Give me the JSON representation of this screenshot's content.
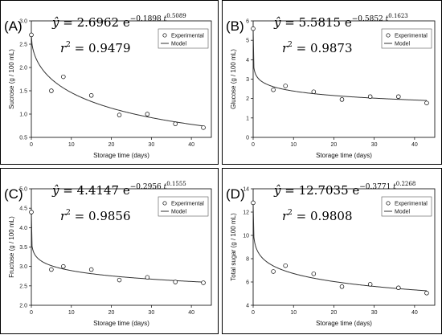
{
  "chart_data": [
    {
      "type": "scatter",
      "panel_label": "(A)",
      "equation": {
        "yhat": "ŷ",
        "lhs": " = 2.6962 e",
        "exp_part1": "−0.1898 ",
        "t": "t",
        "exp_part2": "0.5089",
        "a": 2.6962,
        "b": -0.1898,
        "c": 0.5089
      },
      "r2": {
        "label": "r",
        "sup": "2",
        "text": " = 0.9479"
      },
      "xlabel": "Storage time (days)",
      "ylabel": "Sucrose (g / 100 mL)",
      "xlim": [
        0,
        45
      ],
      "ylim": [
        0.5,
        3.0
      ],
      "xticks": [
        0,
        10,
        20,
        30,
        40
      ],
      "yticks": [
        "0.5",
        "1.0",
        "1.5",
        "2.0",
        "2.5",
        "3.0"
      ],
      "legend": {
        "experimental": "Experimental",
        "model": "Model",
        "position": "top-right"
      },
      "series": [
        {
          "name": "Experimental",
          "x": [
            0,
            5,
            8,
            15,
            22,
            29,
            36,
            43
          ],
          "y": [
            2.7,
            1.5,
            1.8,
            1.4,
            0.98,
            1.0,
            0.79,
            0.71
          ]
        }
      ]
    },
    {
      "type": "scatter",
      "panel_label": "(B)",
      "equation": {
        "yhat": "ŷ",
        "lhs": " = 5.5815 e",
        "exp_part1": "−0.5852 ",
        "t": "t",
        "exp_part2": "0.1623",
        "a": 5.5815,
        "b": -0.5852,
        "c": 0.1623
      },
      "r2": {
        "label": "r",
        "sup": "2",
        "text": " = 0.9873"
      },
      "xlabel": "Storage time (days)",
      "ylabel": "Glucose (g / 100 mL)",
      "xlim": [
        0,
        45
      ],
      "ylim": [
        0,
        6
      ],
      "xticks": [
        0,
        10,
        20,
        30,
        40
      ],
      "yticks": [
        "0",
        "1",
        "2",
        "3",
        "4",
        "5",
        "6"
      ],
      "legend": {
        "experimental": "Experimental",
        "model": "Model",
        "position": "top-right"
      },
      "series": [
        {
          "name": "Experimental",
          "x": [
            0,
            5,
            8,
            15,
            22,
            29,
            36,
            43
          ],
          "y": [
            5.6,
            2.45,
            2.65,
            2.35,
            1.95,
            2.1,
            2.1,
            1.77
          ]
        }
      ]
    },
    {
      "type": "scatter",
      "panel_label": "(C)",
      "equation": {
        "yhat": "ŷ",
        "lhs": " = 4.4147 e",
        "exp_part1": "−0.2956 ",
        "t": "t",
        "exp_part2": "0.1555",
        "a": 4.4147,
        "b": -0.2956,
        "c": 0.1555
      },
      "r2": {
        "label": "r",
        "sup": "2",
        "text": " = 0.9856"
      },
      "xlabel": "Storage time (days)",
      "ylabel": "Fructose (g / 100 mL)",
      "xlim": [
        0,
        45
      ],
      "ylim": [
        2.0,
        5.0
      ],
      "xticks": [
        0,
        10,
        20,
        30,
        40
      ],
      "yticks": [
        "2.0",
        "2.5",
        "3.0",
        "3.5",
        "4.0",
        "4.5",
        "5.0"
      ],
      "legend": {
        "experimental": "Experimental",
        "model": "Model",
        "position": "top-right"
      },
      "series": [
        {
          "name": "Experimental",
          "x": [
            0,
            5,
            8,
            15,
            22,
            29,
            36,
            43
          ],
          "y": [
            4.4,
            2.92,
            3.0,
            2.92,
            2.65,
            2.72,
            2.6,
            2.58
          ]
        }
      ]
    },
    {
      "type": "scatter",
      "panel_label": "(D)",
      "equation": {
        "yhat": "ŷ",
        "lhs": " = 12.7035 e",
        "exp_part1": "−0.3771 ",
        "t": "t",
        "exp_part2": "0.2268",
        "a": 12.7035,
        "b": -0.3771,
        "c": 0.2268
      },
      "r2": {
        "label": "r",
        "sup": "2",
        "text": " = 0.9808"
      },
      "xlabel": "Storage time (days)",
      "ylabel": "Total sugar (g / 100 mL)",
      "xlim": [
        0,
        45
      ],
      "ylim": [
        4,
        14
      ],
      "xticks": [
        0,
        10,
        20,
        30,
        40
      ],
      "yticks": [
        "4",
        "6",
        "8",
        "10",
        "12",
        "14"
      ],
      "legend": {
        "experimental": "Experimental",
        "model": "Model",
        "position": "top-right"
      },
      "series": [
        {
          "name": "Experimental",
          "x": [
            0,
            5,
            8,
            15,
            22,
            29,
            36,
            43
          ],
          "y": [
            12.8,
            6.9,
            7.4,
            6.7,
            5.6,
            5.8,
            5.5,
            5.05
          ]
        }
      ]
    }
  ]
}
